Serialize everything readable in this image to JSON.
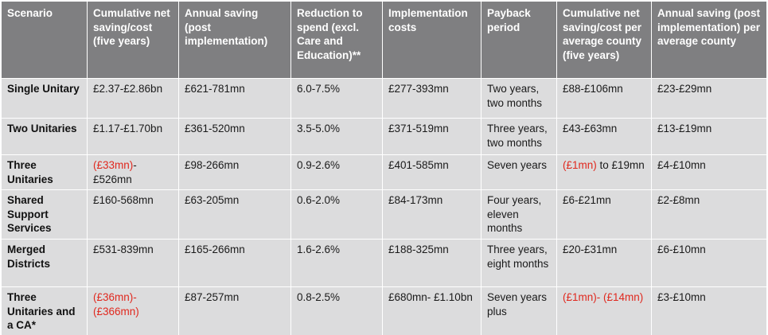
{
  "headers": [
    "Scenario",
    "Cumulative net saving/cost (five years)",
    "Annual saving (post implementation)",
    "Reduction to spend (excl. Care and Education)**",
    "Implementation costs",
    "Payback period",
    "Cumulative net saving/cost per average county (five years)",
    "Annual saving (post implementation) per average county"
  ],
  "rows": [
    {
      "scenario": "Single Unitary",
      "cumulative": [
        {
          "t": "£2.37-£2.86bn",
          "neg": false
        }
      ],
      "annual": "£621-781mn",
      "reduction": "6.0-7.5%",
      "implementation": "£277-393mn",
      "payback": "Two years, two months",
      "county_cumulative": [
        {
          "t": "£88-£106mn",
          "neg": false
        }
      ],
      "county_annual": "£23-£29mn"
    },
    {
      "scenario": "Two Unitaries",
      "cumulative": [
        {
          "t": "£1.17-£1.70bn",
          "neg": false
        }
      ],
      "annual": "£361-520mn",
      "reduction": "3.5-5.0%",
      "implementation": "£371-519mn",
      "payback": "Three years, two months",
      "county_cumulative": [
        {
          "t": "£43-£63mn",
          "neg": false
        }
      ],
      "county_annual": "£13-£19mn"
    },
    {
      "scenario": "Three Unitaries",
      "cumulative": [
        {
          "t": "(£33mn)",
          "neg": true
        },
        {
          "t": "- £526mn",
          "neg": false
        }
      ],
      "annual": "£98-266mn",
      "reduction": "0.9-2.6%",
      "implementation": "£401-585mn",
      "payback": "Seven years",
      "county_cumulative": [
        {
          "t": "(£1mn)",
          "neg": true
        },
        {
          "t": " to £19mn",
          "neg": false
        }
      ],
      "county_annual": "£4-£10mn"
    },
    {
      "scenario": "Shared Support Services",
      "cumulative": [
        {
          "t": "£160-568mn",
          "neg": false
        }
      ],
      "annual": "£63-205mn",
      "reduction": "0.6-2.0%",
      "implementation": "£84-173mn",
      "payback": "Four years, eleven months",
      "county_cumulative": [
        {
          "t": "£6-£21mn",
          "neg": false
        }
      ],
      "county_annual": "£2-£8mn"
    },
    {
      "scenario": "Merged Districts",
      "cumulative": [
        {
          "t": "£531-839mn",
          "neg": false
        }
      ],
      "annual": "£165-266mn",
      "reduction": "1.6-2.6%",
      "implementation": "£188-325mn",
      "payback": "Three years, eight months",
      "county_cumulative": [
        {
          "t": "£20-£31mn",
          "neg": false
        }
      ],
      "county_annual": "£6-£10mn"
    },
    {
      "scenario": "Three Unitaries and a CA*",
      "cumulative": [
        {
          "t": "(£36mn)- (£366mn)",
          "neg": true
        }
      ],
      "annual": "£87-257mn",
      "reduction": "0.8-2.5%",
      "implementation": "£680mn- £1.10bn",
      "payback": "Seven years plus",
      "county_cumulative": [
        {
          "t": "(£1mn)- (£14mn)",
          "neg": true
        }
      ],
      "county_annual": "£3-£10mn"
    }
  ],
  "colors": {
    "header_bg": "#7f7f81",
    "body_bg": "#dcdcdd",
    "negative_text": "#e0281e"
  }
}
